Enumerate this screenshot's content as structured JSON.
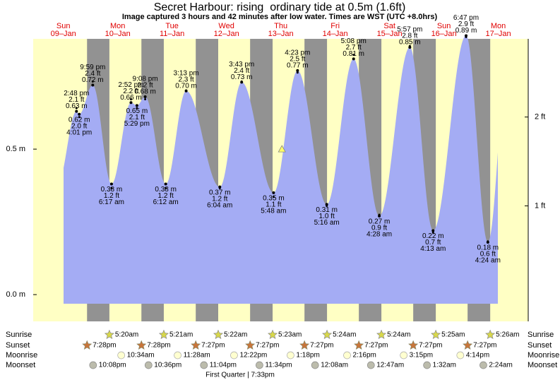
{
  "chart_data": {
    "type": "area",
    "title": "Secret Harbour: rising  ordinary tide at 0.5m (1.6ft)",
    "subtitle": "Image captured 3 hours and 42 minutes after low water. Times are WST (UTC +8.0hrs)",
    "days": [
      "Sun",
      "Mon",
      "Tue",
      "Wed",
      "Thu",
      "Fri",
      "Sat",
      "Sun",
      "Mon"
    ],
    "dates": [
      "09–Jan",
      "10–Jan",
      "11–Jan",
      "12–Jan",
      "13–Jan",
      "14–Jan",
      "15–Jan",
      "16–Jan",
      "17–Jan"
    ],
    "x": [
      "2:48 pm",
      "4:01 pm",
      "9:59 pm",
      "6:17 am",
      "2:52 pm",
      "5:29 pm",
      "9:08 pm",
      "6:12 am",
      "3:13 pm",
      "6:04 am",
      "3:43 pm",
      "5:48 am",
      "4:23 pm",
      "5:16 am",
      "5:08 pm",
      "4:28 am",
      "5:57 pm",
      "4:13 am",
      "6:47 pm",
      "4:24 am"
    ],
    "series": [
      {
        "color": "#a4acf4",
        "values": [
          0.63,
          0.62,
          0.72,
          0.38,
          0.66,
          0.65,
          0.68,
          0.38,
          0.7,
          0.37,
          0.73,
          0.35,
          0.77,
          0.31,
          0.81,
          0.27,
          0.85,
          0.22,
          0.89,
          0.18
        ],
        "value_labels": [
          "0.63 m",
          "0.62 m",
          "0.72 m",
          "0.38 m",
          "0.66 m",
          "0.65 m",
          "0.68 m",
          "0.38 m",
          "0.70 m",
          "0.37 m",
          "0.73 m",
          "0.35 m",
          "0.77 m",
          "0.31 m",
          "0.81 m",
          "0.27 m",
          "0.85 m",
          "0.22 m",
          "0.89 m",
          "0.18 m"
        ]
      },
      {
        "axis": "y2",
        "values": [
          2.1,
          2.0,
          2.4,
          1.2,
          2.2,
          2.1,
          2.2,
          1.2,
          2.3,
          1.2,
          2.4,
          1.1,
          2.5,
          1.0,
          2.7,
          0.9,
          2.8,
          0.7,
          2.9,
          0.6
        ],
        "value_labels": [
          "2.1 ft",
          "2.0 ft",
          "2.4 ft",
          "1.2 ft",
          "2.2 ft",
          "2.1 ft",
          "2.2 ft",
          "1.2 ft",
          "2.3 ft",
          "1.2 ft",
          "2.4 ft",
          "1.1 ft",
          "2.5 ft",
          "1.0 ft",
          "2.7 ft",
          "0.9 ft",
          "2.8 ft",
          "0.7 ft",
          "2.9 ft",
          "0.6 ft"
        ]
      }
    ],
    "ylim": [
      -0.092,
      0.879
    ],
    "yticks": [
      {
        "value": 0,
        "label": "0.0 m"
      },
      {
        "value": 0.5,
        "label": "0.5 m"
      }
    ],
    "y2lim": [
      -0.3,
      2.88
    ],
    "y2ticks": [
      {
        "value": 1,
        "label": "1 ft"
      },
      {
        "value": 2,
        "label": "2 ft"
      }
    ],
    "marker": {
      "date": "13–Jan",
      "time": "9:30am",
      "value": 0.5
    },
    "rows": [
      {
        "label": "Sunrise",
        "events": [
          {
            "date": "10–Jan",
            "time": "5:20am"
          },
          {
            "date": "11–Jan",
            "time": "5:21am"
          },
          {
            "date": "12–Jan",
            "time": "5:22am"
          },
          {
            "date": "13–Jan",
            "time": "5:23am"
          },
          {
            "date": "14–Jan",
            "time": "5:24am"
          },
          {
            "date": "15–Jan",
            "time": "5:24am"
          },
          {
            "date": "16–Jan",
            "time": "5:25am"
          },
          {
            "date": "17–Jan",
            "time": "5:26am"
          }
        ]
      },
      {
        "label": "Sunset",
        "events": [
          {
            "date": "09–Jan",
            "time": "7:28pm"
          },
          {
            "date": "10–Jan",
            "time": "7:28pm"
          },
          {
            "date": "11–Jan",
            "time": "7:27pm"
          },
          {
            "date": "12–Jan",
            "time": "7:27pm"
          },
          {
            "date": "13–Jan",
            "time": "7:27pm"
          },
          {
            "date": "14–Jan",
            "time": "7:27pm"
          },
          {
            "date": "15–Jan",
            "time": "7:27pm"
          },
          {
            "date": "16–Jan",
            "time": "7:27pm"
          }
        ]
      },
      {
        "label": "Moonrise",
        "events": [
          {
            "date": "10–Jan",
            "time": "10:34am"
          },
          {
            "date": "11–Jan",
            "time": "11:28am"
          },
          {
            "date": "12–Jan",
            "time": "12:22pm"
          },
          {
            "date": "13–Jan",
            "time": "1:18pm"
          },
          {
            "date": "14–Jan",
            "time": "2:16pm"
          },
          {
            "date": "15–Jan",
            "time": "3:15pm"
          },
          {
            "date": "16–Jan",
            "time": "4:14pm"
          }
        ]
      },
      {
        "label": "Moonset",
        "events": [
          {
            "date": "09–Jan",
            "time": "10:08pm"
          },
          {
            "date": "10–Jan",
            "time": "10:36pm"
          },
          {
            "date": "11–Jan",
            "time": "11:04pm"
          },
          {
            "date": "12–Jan",
            "time": "11:34pm"
          },
          {
            "date": "14–Jan",
            "time": "12:08am"
          },
          {
            "date": "15–Jan",
            "time": "12:47am"
          },
          {
            "date": "16–Jan",
            "time": "1:32am"
          },
          {
            "date": "17–Jan",
            "time": "2:24am"
          }
        ]
      }
    ],
    "moon_phase": "First Quarter | 7:33pm"
  }
}
